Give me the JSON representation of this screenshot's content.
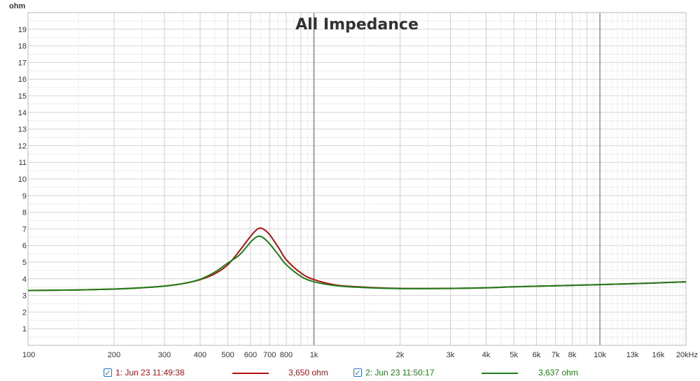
{
  "chart_data": {
    "type": "line",
    "title": "All Impedance",
    "ylabel": "ohm",
    "xlabel": "",
    "x_scale": "log",
    "xlim": [
      100,
      20000
    ],
    "ylim": [
      0,
      20
    ],
    "grid": true,
    "x_tick_values": [
      100,
      200,
      300,
      400,
      500,
      600,
      700,
      800,
      1000,
      2000,
      3000,
      4000,
      5000,
      6000,
      7000,
      8000,
      10000,
      13000,
      16000,
      20000
    ],
    "x_tick_labels": [
      "100",
      "200",
      "300",
      "400",
      "500",
      "600",
      "700",
      "800",
      "1k",
      "2k",
      "3k",
      "4k",
      "5k",
      "6k",
      "7k",
      "8k",
      "10k",
      "13k",
      "16k",
      "20kHz"
    ],
    "y_ticks": [
      1,
      2,
      3,
      4,
      5,
      6,
      7,
      8,
      9,
      10,
      11,
      12,
      13,
      14,
      15,
      16,
      17,
      18,
      19
    ],
    "x": [
      100,
      150,
      200,
      250,
      300,
      350,
      400,
      450,
      500,
      550,
      600,
      630,
      650,
      670,
      700,
      750,
      800,
      900,
      1000,
      1200,
      1500,
      2000,
      3000,
      4000,
      5000,
      7000,
      10000,
      15000,
      20000
    ],
    "series": [
      {
        "name": "1: Jun 23 11:49:38",
        "color": "#b01010",
        "values": [
          3.3,
          3.33,
          3.38,
          3.46,
          3.56,
          3.72,
          3.95,
          4.3,
          4.85,
          5.7,
          6.55,
          6.95,
          7.05,
          6.95,
          6.65,
          5.9,
          5.15,
          4.35,
          3.95,
          3.62,
          3.5,
          3.42,
          3.42,
          3.46,
          3.52,
          3.58,
          3.65,
          3.74,
          3.82
        ]
      },
      {
        "name": "2: Jun 23 11:50:17",
        "color": "#1e7d18",
        "values": [
          3.3,
          3.33,
          3.38,
          3.46,
          3.56,
          3.72,
          3.97,
          4.4,
          4.95,
          5.45,
          6.2,
          6.52,
          6.55,
          6.42,
          6.1,
          5.45,
          4.85,
          4.15,
          3.82,
          3.58,
          3.47,
          3.41,
          3.42,
          3.46,
          3.52,
          3.58,
          3.65,
          3.74,
          3.82
        ]
      }
    ]
  },
  "legend": [
    {
      "label": "1: Jun 23 11:49:38",
      "value": "3,650 ohm",
      "color": "#b01010",
      "checked": true
    },
    {
      "label": "2: Jun 23 11:50:17",
      "value": "3,637 ohm",
      "color": "#1e7d18",
      "checked": true
    }
  ]
}
